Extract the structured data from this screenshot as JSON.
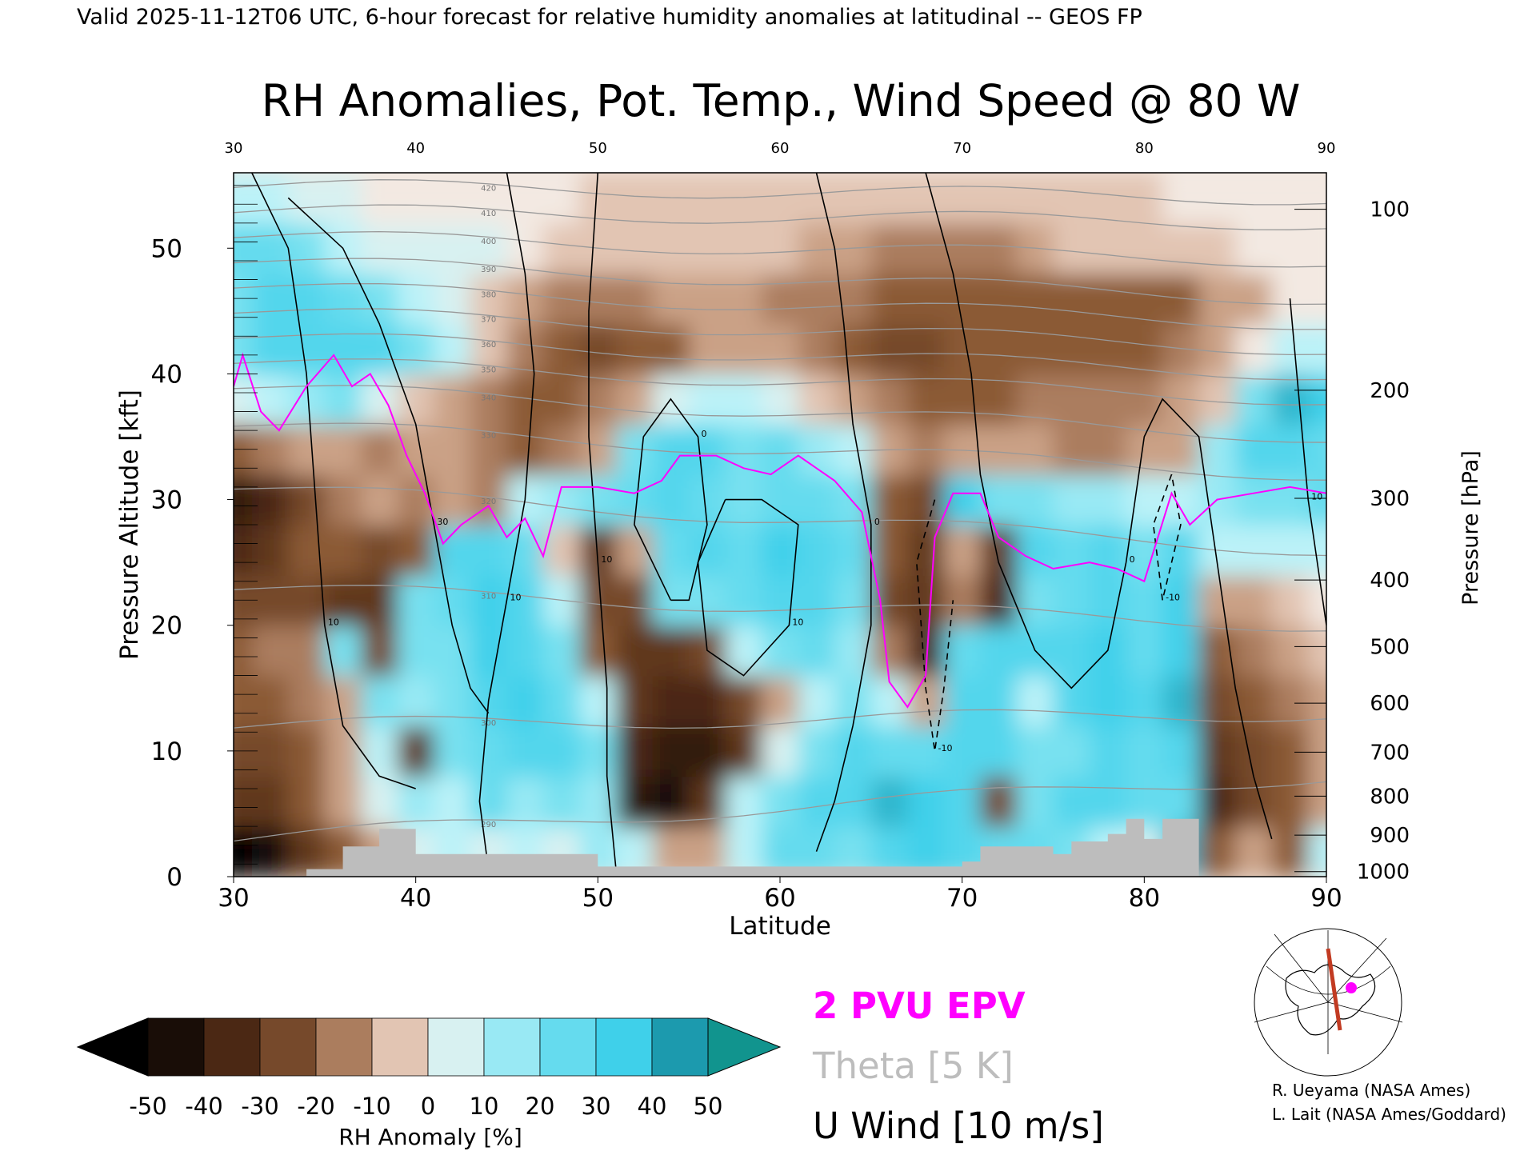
{
  "header": "Valid 2025-11-12T06 UTC, 6-hour forecast for relative humidity anomalies at latitudinal -- GEOS FP",
  "title": "RH Anomalies, Pot. Temp., Wind Speed @ 80 W",
  "colors": {
    "anomaly_min": "#000000",
    "anomaly_neg": "#8b5a36",
    "anomaly_zero": "#f3e9e2",
    "anomaly_pos": "#3fd0ea",
    "anomaly_max": "#0a7f90",
    "epv_line": "#ff00ff",
    "theta_line": "#999999",
    "wind_line": "#000000",
    "topography": "#bdbdbd"
  },
  "chart_data": {
    "type": "heatmap",
    "xlabel": "Latitude",
    "ylabel_left": "Pressure Altitude [kft]",
    "ylabel_right": "Pressure [hPa]",
    "xlim": [
      30,
      90
    ],
    "ylim": [
      0,
      56
    ],
    "x_ticks": [
      30,
      40,
      50,
      60,
      70,
      80,
      90
    ],
    "top_ticks": [
      30,
      40,
      50,
      60,
      70,
      80,
      90
    ],
    "y_ticks": [
      0,
      10,
      20,
      30,
      40,
      50
    ],
    "pressure_ticks": [
      1000,
      900,
      800,
      700,
      600,
      500,
      400,
      300,
      200,
      100
    ],
    "pressure_alt_kft": [
      0.4,
      3.3,
      6.4,
      9.9,
      13.8,
      18.3,
      23.6,
      30.1,
      38.7,
      53.1
    ],
    "colorbar": {
      "label": "RH Anomaly [%]",
      "ticks": [
        -50,
        -40,
        -30,
        -20,
        -10,
        0,
        10,
        20,
        30,
        40,
        50
      ],
      "tick_labels": [
        "-50",
        "-40",
        "-30",
        "-20",
        "-10",
        "0",
        "10",
        "20",
        "30",
        "40",
        "50"
      ]
    },
    "legend": [
      {
        "label": "2 PVU EPV",
        "color": "#ff00ff"
      },
      {
        "label": "Theta [5 K]",
        "color": "#bdbdbd"
      },
      {
        "label": "U Wind [10 m/s]",
        "color": "#000000"
      }
    ],
    "rh_anomaly_lat": [
      30,
      32,
      34,
      36,
      38,
      40,
      42,
      44,
      46,
      48,
      50,
      52,
      54,
      56,
      58,
      60,
      62,
      64,
      66,
      68,
      70,
      72,
      74,
      76,
      78,
      80,
      82,
      84,
      86,
      88,
      90
    ],
    "rh_anomaly_alt": [
      2,
      6,
      10,
      14,
      18,
      22,
      26,
      30,
      34,
      38,
      42,
      46,
      50,
      54
    ],
    "rh_anomaly": [
      [
        -50,
        -45,
        -30,
        -20,
        -10,
        5,
        10,
        5,
        10,
        5,
        15,
        10,
        -10,
        -10,
        10,
        25,
        25,
        20,
        30,
        35,
        30,
        25,
        25,
        20,
        10,
        5,
        40,
        -20,
        -10,
        -20,
        10
      ],
      [
        -30,
        -30,
        -20,
        -10,
        5,
        15,
        10,
        25,
        15,
        20,
        15,
        -40,
        -45,
        -30,
        10,
        20,
        30,
        30,
        40,
        35,
        30,
        -25,
        20,
        30,
        30,
        25,
        25,
        -35,
        -25,
        -20,
        -10
      ],
      [
        -25,
        -25,
        -20,
        -10,
        10,
        -30,
        20,
        25,
        30,
        30,
        20,
        -35,
        -40,
        -40,
        -30,
        5,
        20,
        30,
        25,
        25,
        30,
        30,
        20,
        20,
        30,
        25,
        30,
        -30,
        -25,
        -20,
        -10
      ],
      [
        -20,
        -20,
        -15,
        -10,
        20,
        15,
        20,
        30,
        35,
        25,
        10,
        -30,
        -35,
        -35,
        -25,
        -10,
        10,
        20,
        10,
        -10,
        30,
        30,
        10,
        30,
        35,
        30,
        40,
        -25,
        -20,
        -15,
        -10
      ],
      [
        -20,
        -15,
        -15,
        20,
        -25,
        20,
        20,
        35,
        30,
        20,
        -20,
        -30,
        -30,
        -25,
        10,
        20,
        25,
        15,
        -15,
        -35,
        25,
        30,
        30,
        30,
        35,
        25,
        35,
        -20,
        -15,
        -10,
        -5
      ],
      [
        -25,
        -25,
        -25,
        -30,
        -30,
        20,
        25,
        35,
        30,
        10,
        -25,
        -25,
        20,
        20,
        25,
        30,
        30,
        20,
        -25,
        -30,
        -15,
        -35,
        20,
        25,
        30,
        25,
        35,
        -10,
        -10,
        -5,
        0
      ],
      [
        -35,
        -30,
        -20,
        -20,
        -25,
        -20,
        30,
        30,
        25,
        -5,
        -30,
        -10,
        25,
        30,
        25,
        35,
        30,
        25,
        -20,
        -30,
        -10,
        -30,
        30,
        25,
        30,
        20,
        30,
        10,
        10,
        10,
        10
      ],
      [
        -40,
        -35,
        -25,
        -15,
        -10,
        -15,
        -10,
        -15,
        10,
        15,
        20,
        25,
        30,
        25,
        20,
        25,
        25,
        20,
        -20,
        -25,
        35,
        20,
        20,
        15,
        15,
        10,
        10,
        15,
        20,
        20,
        25
      ],
      [
        -20,
        -15,
        -10,
        -10,
        -15,
        -10,
        -10,
        -15,
        -20,
        -15,
        -10,
        20,
        30,
        30,
        20,
        25,
        15,
        10,
        -10,
        -15,
        -10,
        -10,
        -10,
        -15,
        -15,
        -10,
        -10,
        15,
        30,
        30,
        25
      ],
      [
        5,
        10,
        15,
        20,
        5,
        -5,
        -10,
        -15,
        -20,
        -20,
        -15,
        -10,
        5,
        10,
        10,
        5,
        -5,
        -10,
        -15,
        -20,
        -20,
        -20,
        -15,
        -15,
        -15,
        -15,
        -10,
        -5,
        20,
        40,
        35
      ],
      [
        20,
        30,
        30,
        30,
        30,
        20,
        10,
        -5,
        -15,
        -20,
        -25,
        -20,
        -20,
        -10,
        -10,
        -10,
        -15,
        -20,
        -25,
        -25,
        -20,
        -20,
        -20,
        -20,
        -20,
        -20,
        -15,
        -10,
        0,
        10,
        10
      ],
      [
        20,
        30,
        30,
        25,
        20,
        10,
        5,
        -5,
        -10,
        -15,
        -15,
        -15,
        -10,
        -10,
        -10,
        -15,
        -15,
        -15,
        -20,
        -20,
        -20,
        -20,
        -20,
        -20,
        -20,
        -20,
        -20,
        -10,
        -10,
        0,
        0
      ],
      [
        25,
        25,
        20,
        10,
        5,
        5,
        5,
        5,
        0,
        -5,
        -5,
        -5,
        -5,
        -5,
        -5,
        -5,
        -10,
        -10,
        -15,
        -15,
        -15,
        -15,
        -10,
        -5,
        -5,
        -5,
        -5,
        -5,
        0,
        0,
        0
      ],
      [
        10,
        10,
        5,
        5,
        0,
        0,
        0,
        0,
        0,
        0,
        -5,
        -5,
        -5,
        -5,
        -5,
        -5,
        -5,
        -5,
        -5,
        -5,
        -5,
        -5,
        -5,
        -5,
        -5,
        -5,
        0,
        0,
        0,
        0,
        0
      ]
    ],
    "epv_2pvu": [
      {
        "lat": 30.0,
        "alt": 39.0
      },
      {
        "lat": 30.5,
        "alt": 41.5
      },
      {
        "lat": 31.5,
        "alt": 37.0
      },
      {
        "lat": 32.5,
        "alt": 35.5
      },
      {
        "lat": 34.0,
        "alt": 39.0
      },
      {
        "lat": 35.5,
        "alt": 41.5
      },
      {
        "lat": 36.5,
        "alt": 39.0
      },
      {
        "lat": 37.5,
        "alt": 40.0
      },
      {
        "lat": 38.5,
        "alt": 37.5
      },
      {
        "lat": 39.5,
        "alt": 33.5
      },
      {
        "lat": 40.5,
        "alt": 30.5
      },
      {
        "lat": 41.5,
        "alt": 26.5
      },
      {
        "lat": 42.5,
        "alt": 28.0
      },
      {
        "lat": 44.0,
        "alt": 29.5
      },
      {
        "lat": 45.0,
        "alt": 27.0
      },
      {
        "lat": 46.0,
        "alt": 28.5
      },
      {
        "lat": 47.0,
        "alt": 25.5
      },
      {
        "lat": 48.0,
        "alt": 31.0
      },
      {
        "lat": 50.0,
        "alt": 31.0
      },
      {
        "lat": 52.0,
        "alt": 30.5
      },
      {
        "lat": 53.5,
        "alt": 31.5
      },
      {
        "lat": 54.5,
        "alt": 33.5
      },
      {
        "lat": 56.5,
        "alt": 33.5
      },
      {
        "lat": 58.0,
        "alt": 32.5
      },
      {
        "lat": 59.5,
        "alt": 32.0
      },
      {
        "lat": 61.0,
        "alt": 33.5
      },
      {
        "lat": 63.0,
        "alt": 31.5
      },
      {
        "lat": 64.5,
        "alt": 29.0
      },
      {
        "lat": 65.5,
        "alt": 22.0
      },
      {
        "lat": 66.0,
        "alt": 15.5
      },
      {
        "lat": 67.0,
        "alt": 13.5
      },
      {
        "lat": 68.0,
        "alt": 16.0
      },
      {
        "lat": 68.5,
        "alt": 27.0
      },
      {
        "lat": 69.5,
        "alt": 30.5
      },
      {
        "lat": 71.0,
        "alt": 30.5
      },
      {
        "lat": 72.0,
        "alt": 27.0
      },
      {
        "lat": 73.5,
        "alt": 25.5
      },
      {
        "lat": 75.0,
        "alt": 24.5
      },
      {
        "lat": 77.0,
        "alt": 25.0
      },
      {
        "lat": 78.5,
        "alt": 24.5
      },
      {
        "lat": 80.0,
        "alt": 23.5
      },
      {
        "lat": 81.5,
        "alt": 30.5
      },
      {
        "lat": 82.5,
        "alt": 28.0
      },
      {
        "lat": 84.0,
        "alt": 30.0
      },
      {
        "lat": 86.0,
        "alt": 30.5
      },
      {
        "lat": 88.0,
        "alt": 31.0
      },
      {
        "lat": 90.0,
        "alt": 30.5
      }
    ],
    "theta_levels": [
      {
        "value": 290,
        "alt_30": 3,
        "alt_90": 8
      },
      {
        "value": 300,
        "alt_30": 12,
        "alt_90": 13
      },
      {
        "value": 310,
        "alt_30": 23,
        "alt_90": 20
      },
      {
        "value": 320,
        "alt_30": 31,
        "alt_90": 26
      },
      {
        "value": 330,
        "alt_30": 36,
        "alt_90": 32
      },
      {
        "value": 340,
        "alt_30": 39,
        "alt_90": 35
      },
      {
        "value": 350,
        "alt_30": 41,
        "alt_90": 38
      },
      {
        "value": 360,
        "alt_30": 43,
        "alt_90": 40
      },
      {
        "value": 370,
        "alt_30": 45,
        "alt_90": 42
      },
      {
        "value": 380,
        "alt_30": 47,
        "alt_90": 44
      },
      {
        "value": 390,
        "alt_30": 49,
        "alt_90": 46
      },
      {
        "value": 400,
        "alt_30": 51,
        "alt_90": 49
      },
      {
        "value": 410,
        "alt_30": 53,
        "alt_90": 52
      },
      {
        "value": 420,
        "alt_30": 55,
        "alt_90": 54
      }
    ],
    "u_wind": [
      {
        "label": "10",
        "dashed": false,
        "points": [
          [
            31,
            56
          ],
          [
            33,
            50
          ],
          [
            34,
            40
          ],
          [
            34.5,
            30
          ],
          [
            35,
            20
          ],
          [
            36,
            12
          ],
          [
            38,
            8
          ],
          [
            40,
            7
          ]
        ]
      },
      {
        "label": "30",
        "dashed": false,
        "points": [
          [
            33,
            54
          ],
          [
            36,
            50
          ],
          [
            38,
            44
          ],
          [
            40,
            36
          ],
          [
            41,
            28
          ],
          [
            42,
            20
          ],
          [
            43,
            15
          ],
          [
            44,
            13
          ]
        ]
      },
      {
        "label": "10",
        "dashed": false,
        "points": [
          [
            45,
            56
          ],
          [
            46,
            48
          ],
          [
            46.5,
            40
          ],
          [
            46,
            30
          ],
          [
            45,
            22
          ],
          [
            44,
            14
          ],
          [
            43.5,
            6
          ],
          [
            44,
            0.5
          ]
        ]
      },
      {
        "label": "10",
        "dashed": false,
        "points": [
          [
            50,
            56
          ],
          [
            49.5,
            45
          ],
          [
            49.5,
            35
          ],
          [
            50,
            25
          ],
          [
            50.5,
            15
          ],
          [
            50.5,
            8
          ],
          [
            51,
            0.5
          ]
        ]
      },
      {
        "label": "0",
        "dashed": false,
        "points": [
          [
            54,
            22
          ],
          [
            52,
            28
          ],
          [
            52.5,
            35
          ],
          [
            54,
            38
          ],
          [
            55.5,
            35
          ],
          [
            56,
            28
          ],
          [
            55,
            22
          ],
          [
            54,
            22
          ]
        ]
      },
      {
        "label": "10",
        "dashed": false,
        "points": [
          [
            57,
            30
          ],
          [
            55.5,
            25
          ],
          [
            56,
            18
          ],
          [
            58,
            16
          ],
          [
            60.5,
            20
          ],
          [
            61,
            28
          ],
          [
            59,
            30
          ],
          [
            57,
            30
          ]
        ]
      },
      {
        "label": "0",
        "dashed": false,
        "points": [
          [
            62,
            56
          ],
          [
            63,
            50
          ],
          [
            63.5,
            44
          ],
          [
            64,
            36
          ],
          [
            65,
            28
          ],
          [
            65,
            20
          ],
          [
            64,
            12
          ],
          [
            63,
            6
          ],
          [
            62,
            2
          ]
        ]
      },
      {
        "label": "0",
        "dashed": false,
        "points": [
          [
            68,
            56
          ],
          [
            69.5,
            48
          ],
          [
            70.5,
            40
          ],
          [
            71,
            32
          ],
          [
            72,
            25
          ],
          [
            74,
            18
          ],
          [
            76,
            15
          ],
          [
            78,
            18
          ],
          [
            79,
            25
          ],
          [
            80,
            35
          ],
          [
            81,
            38
          ],
          [
            83,
            35
          ],
          [
            84,
            25
          ],
          [
            85,
            15
          ],
          [
            86,
            8
          ],
          [
            87,
            3
          ]
        ]
      },
      {
        "label": "-10",
        "dashed": true,
        "points": [
          [
            68.5,
            30
          ],
          [
            67.5,
            25
          ],
          [
            68,
            15
          ],
          [
            68.5,
            10
          ],
          [
            69,
            15
          ],
          [
            69.5,
            22
          ]
        ]
      },
      {
        "label": "-10",
        "dashed": true,
        "points": [
          [
            81.5,
            32
          ],
          [
            80.5,
            28
          ],
          [
            81,
            22
          ],
          [
            82,
            28
          ],
          [
            81.5,
            32
          ]
        ]
      },
      {
        "label": "10",
        "dashed": false,
        "points": [
          [
            88,
            46
          ],
          [
            89,
            30
          ],
          [
            90,
            20
          ]
        ]
      }
    ],
    "topography": [
      [
        30,
        0
      ],
      [
        34,
        0
      ],
      [
        34,
        0.6
      ],
      [
        36,
        0.6
      ],
      [
        36,
        2.4
      ],
      [
        38,
        2.4
      ],
      [
        38,
        3.8
      ],
      [
        40,
        3.8
      ],
      [
        40,
        1.8
      ],
      [
        50,
        1.8
      ],
      [
        50,
        0.8
      ],
      [
        70,
        0.8
      ],
      [
        70,
        1.2
      ],
      [
        71,
        1.2
      ],
      [
        71,
        2.4
      ],
      [
        75,
        2.4
      ],
      [
        75,
        1.8
      ],
      [
        76,
        1.8
      ],
      [
        76,
        2.8
      ],
      [
        78,
        2.8
      ],
      [
        78,
        3.4
      ],
      [
        79,
        3.4
      ],
      [
        79,
        4.6
      ],
      [
        80,
        4.6
      ],
      [
        80,
        3.0
      ],
      [
        81,
        3.0
      ],
      [
        81,
        4.6
      ],
      [
        83,
        4.6
      ],
      [
        83,
        0
      ],
      [
        90,
        0
      ]
    ]
  },
  "inset_map": {
    "label": "cross-section map",
    "line_color": "#c23b22",
    "marker_color": "#ff00ff"
  },
  "credits": [
    "R. Ueyama (NASA Ames)",
    "L. Lait (NASA Ames/Goddard)"
  ]
}
